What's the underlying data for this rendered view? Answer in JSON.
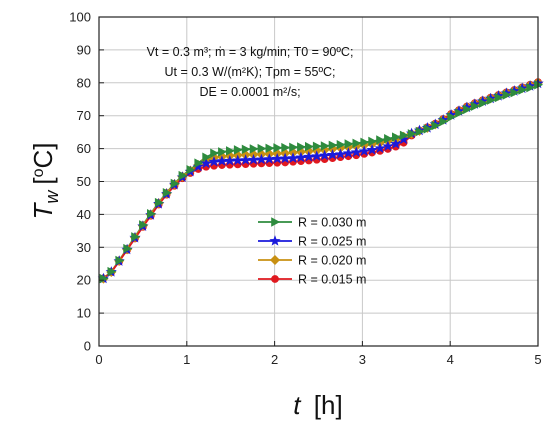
{
  "chart_data": {
    "type": "line",
    "xlabel": {
      "var": "t",
      "unit": "[h]"
    },
    "ylabel": {
      "var": "T",
      "sub": "w",
      "unit_open": "[",
      "unit_sup": "o",
      "unit_rest": "C]"
    },
    "xlim": [
      0,
      5
    ],
    "ylim": [
      0,
      100
    ],
    "xticks": [
      0,
      1,
      2,
      3,
      4,
      5
    ],
    "yticks": [
      0,
      10,
      20,
      30,
      40,
      50,
      60,
      70,
      80,
      90,
      100
    ],
    "grid": true,
    "annotation": {
      "line1": "Vt = 0.3 m³; ṁ = 3 kg/min; T0 = 90ºC;",
      "line2": "Ut = 0.3 W/(m²K); Tpm = 55ºC;",
      "line3": "DE = 0.0001 m²/s;"
    },
    "legend_position": "center",
    "series": [
      {
        "name": "R = 0.030 m",
        "color": "#2e8b3e",
        "marker": "triangle-right",
        "x": [
          0.05,
          0.14,
          0.23,
          0.32,
          0.41,
          0.5,
          0.59,
          0.68,
          0.77,
          0.86,
          0.95,
          1.04,
          1.13,
          1.22,
          1.31,
          1.4,
          1.49,
          1.58,
          1.67,
          1.76,
          1.85,
          1.94,
          2.03,
          2.12,
          2.21,
          2.3,
          2.39,
          2.48,
          2.57,
          2.66,
          2.75,
          2.84,
          2.93,
          3.02,
          3.11,
          3.2,
          3.29,
          3.38,
          3.47,
          3.56,
          3.65,
          3.74,
          3.83,
          3.92,
          4.01,
          4.1,
          4.19,
          4.28,
          4.37,
          4.46,
          4.55,
          4.64,
          4.73,
          4.82,
          4.91,
          5.0
        ],
        "y": [
          20.5,
          22.6,
          26.0,
          29.6,
          33.2,
          36.8,
          40.2,
          43.6,
          46.6,
          49.4,
          51.8,
          53.6,
          55.6,
          57.4,
          58.6,
          59.0,
          59.3,
          59.6,
          59.8,
          59.9,
          60.0,
          60.1,
          60.2,
          60.3,
          60.4,
          60.5,
          60.6,
          60.7,
          60.8,
          61.0,
          61.2,
          61.4,
          61.6,
          61.9,
          62.2,
          62.6,
          63.0,
          63.5,
          64.0,
          64.5,
          65.2,
          66.0,
          67.0,
          68.2,
          69.6,
          70.8,
          71.9,
          72.9,
          73.8,
          74.7,
          75.5,
          76.3,
          77.0,
          77.8,
          78.5,
          79.4
        ]
      },
      {
        "name": "R = 0.025 m",
        "color": "#1a1adb",
        "marker": "star",
        "x": [
          0.05,
          0.14,
          0.23,
          0.32,
          0.41,
          0.5,
          0.59,
          0.68,
          0.77,
          0.86,
          0.95,
          1.04,
          1.13,
          1.22,
          1.31,
          1.4,
          1.49,
          1.58,
          1.67,
          1.76,
          1.85,
          1.94,
          2.03,
          2.12,
          2.21,
          2.3,
          2.39,
          2.48,
          2.57,
          2.66,
          2.75,
          2.84,
          2.93,
          3.02,
          3.11,
          3.2,
          3.29,
          3.38,
          3.47,
          3.56,
          3.65,
          3.74,
          3.83,
          3.92,
          4.01,
          4.1,
          4.19,
          4.28,
          4.37,
          4.46,
          4.55,
          4.64,
          4.73,
          4.82,
          4.91,
          5.0
        ],
        "y": [
          20.5,
          22.5,
          25.8,
          29.3,
          32.9,
          36.4,
          39.8,
          43.2,
          46.2,
          49.0,
          51.3,
          53.0,
          54.5,
          55.5,
          56.0,
          56.2,
          56.3,
          56.4,
          56.5,
          56.6,
          56.7,
          56.8,
          56.9,
          57.0,
          57.1,
          57.3,
          57.5,
          57.7,
          57.9,
          58.1,
          58.3,
          58.6,
          58.9,
          59.2,
          59.6,
          60.1,
          60.7,
          61.4,
          62.8,
          64.6,
          65.5,
          66.3,
          67.4,
          68.7,
          70.2,
          71.4,
          72.5,
          73.5,
          74.4,
          75.2,
          76.0,
          76.8,
          77.5,
          78.3,
          79.0,
          79.8
        ]
      },
      {
        "name": "R = 0.020 m",
        "color": "#c89012",
        "marker": "diamond",
        "x": [
          0.05,
          0.14,
          0.23,
          0.32,
          0.41,
          0.5,
          0.59,
          0.68,
          0.77,
          0.86,
          0.95,
          1.04,
          1.13,
          1.22,
          1.31,
          1.4,
          1.49,
          1.58,
          1.67,
          1.76,
          1.85,
          1.94,
          2.03,
          2.12,
          2.21,
          2.3,
          2.39,
          2.48,
          2.57,
          2.66,
          2.75,
          2.84,
          2.93,
          3.02,
          3.11,
          3.2,
          3.29,
          3.38,
          3.47,
          3.56,
          3.65,
          3.74,
          3.83,
          3.92,
          4.01,
          4.1,
          4.19,
          4.28,
          4.37,
          4.46,
          4.55,
          4.64,
          4.73,
          4.82,
          4.91,
          5.0
        ],
        "y": [
          20.5,
          22.5,
          25.9,
          29.4,
          33.0,
          36.6,
          40.0,
          43.4,
          46.4,
          49.2,
          51.5,
          53.3,
          55.0,
          56.5,
          57.3,
          57.6,
          57.8,
          58.0,
          58.1,
          58.2,
          58.3,
          58.4,
          58.5,
          58.6,
          58.8,
          59.0,
          59.2,
          59.4,
          59.6,
          59.9,
          60.2,
          60.5,
          60.8,
          61.1,
          61.4,
          61.8,
          62.3,
          62.9,
          63.6,
          64.5,
          65.4,
          66.3,
          67.4,
          68.8,
          70.3,
          71.5,
          72.6,
          73.6,
          74.5,
          75.3,
          76.1,
          76.9,
          77.6,
          78.4,
          79.2,
          80.0
        ]
      },
      {
        "name": "R = 0.015 m",
        "color": "#e0191f",
        "marker": "circle",
        "x": [
          0.05,
          0.14,
          0.23,
          0.32,
          0.41,
          0.5,
          0.59,
          0.68,
          0.77,
          0.86,
          0.95,
          1.04,
          1.13,
          1.22,
          1.31,
          1.4,
          1.49,
          1.58,
          1.67,
          1.76,
          1.85,
          1.94,
          2.03,
          2.12,
          2.21,
          2.3,
          2.39,
          2.48,
          2.57,
          2.66,
          2.75,
          2.84,
          2.93,
          3.02,
          3.11,
          3.2,
          3.29,
          3.38,
          3.47,
          3.56,
          3.65,
          3.74,
          3.83,
          3.92,
          4.01,
          4.1,
          4.19,
          4.28,
          4.37,
          4.46,
          4.55,
          4.64,
          4.73,
          4.82,
          4.91,
          5.0
        ],
        "y": [
          20.5,
          22.4,
          25.7,
          29.2,
          32.7,
          36.2,
          39.6,
          43.0,
          46.0,
          48.7,
          51.0,
          52.6,
          53.8,
          54.5,
          54.8,
          55.0,
          55.1,
          55.2,
          55.3,
          55.4,
          55.5,
          55.6,
          55.7,
          55.8,
          56.0,
          56.2,
          56.4,
          56.6,
          56.8,
          57.1,
          57.4,
          57.7,
          58.0,
          58.4,
          58.8,
          59.3,
          59.9,
          60.6,
          61.8,
          64.0,
          65.5,
          66.5,
          67.6,
          69.0,
          70.5,
          71.7,
          72.8,
          73.8,
          74.7,
          75.5,
          76.3,
          77.1,
          77.8,
          78.6,
          79.4,
          80.2
        ]
      }
    ]
  }
}
